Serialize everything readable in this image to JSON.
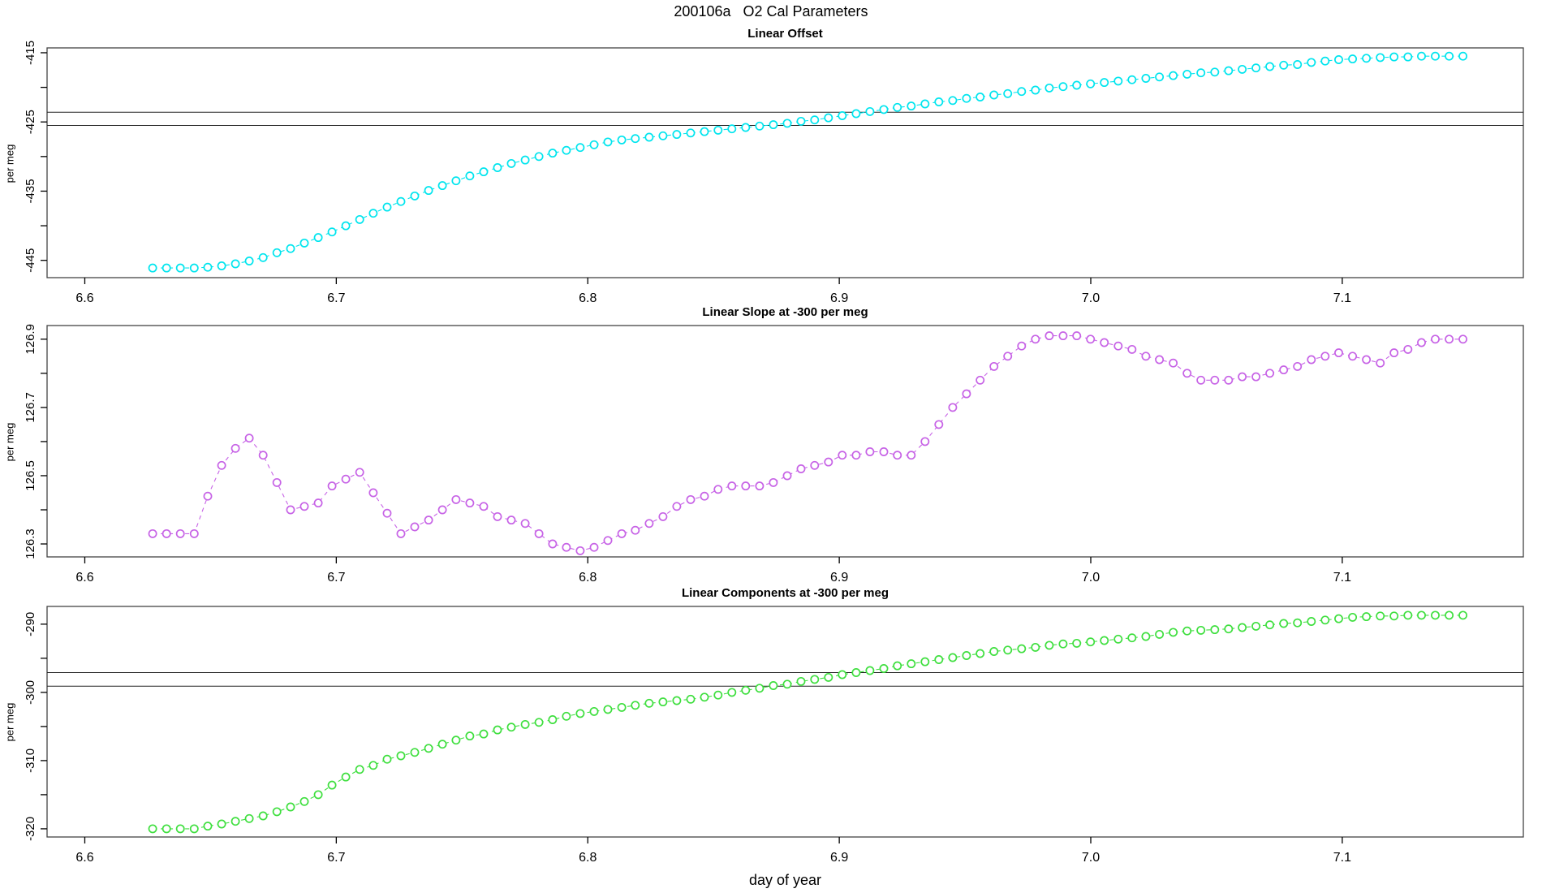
{
  "header": {
    "title": "200106a   O2 Cal Parameters"
  },
  "chart_data": {
    "type": "scatter",
    "layout": "3 stacked panels, shared x-axis",
    "grid": "off",
    "legend": "none",
    "marker": "open-circle",
    "line_style": "dashed",
    "axis_color": "#444444",
    "background": "#ffffff",
    "xlabel": "day of year",
    "xlim": [
      6.585,
      7.172
    ],
    "xticks": [
      {
        "v": 6.6,
        "t": "6.6"
      },
      {
        "v": 6.7,
        "t": "6.7"
      },
      {
        "v": 6.8,
        "t": "6.8"
      },
      {
        "v": 6.9,
        "t": "6.9"
      },
      {
        "v": 7.0,
        "t": "7.0"
      },
      {
        "v": 7.1,
        "t": "7.1"
      }
    ],
    "x": [
      6.627,
      6.6325,
      6.638,
      6.6435,
      6.6489,
      6.6544,
      6.6599,
      6.6654,
      6.6709,
      6.6764,
      6.6818,
      6.6873,
      6.6928,
      6.6983,
      6.7038,
      6.7093,
      6.7147,
      6.7202,
      6.7257,
      6.7312,
      6.7367,
      6.7422,
      6.7476,
      6.7531,
      6.7586,
      6.7641,
      6.7696,
      6.7751,
      6.7806,
      6.786,
      6.7915,
      6.797,
      6.8025,
      6.808,
      6.8135,
      6.8189,
      6.8244,
      6.8299,
      6.8354,
      6.8409,
      6.8464,
      6.8518,
      6.8573,
      6.8628,
      6.8683,
      6.8738,
      6.8793,
      6.8848,
      6.8902,
      6.8957,
      6.9012,
      6.9067,
      6.9122,
      6.9177,
      6.9231,
      6.9286,
      6.9341,
      6.9396,
      6.9451,
      6.9506,
      6.956,
      6.9615,
      6.967,
      6.9725,
      6.978,
      6.9835,
      6.989,
      6.9944,
      6.9999,
      7.0054,
      7.0109,
      7.0164,
      7.0219,
      7.0273,
      7.0328,
      7.0383,
      7.0438,
      7.0493,
      7.0548,
      7.0602,
      7.0657,
      7.0712,
      7.0767,
      7.0822,
      7.0877,
      7.0932,
      7.0986,
      7.1041,
      7.1096,
      7.1151,
      7.1206,
      7.1261,
      7.1315,
      7.137,
      7.1425,
      7.148
    ],
    "panels": [
      {
        "title": "Linear Offset",
        "ylabel": "per meg",
        "ylim": [
          -447.5,
          -414.3
        ],
        "yticks": [
          {
            "v": -415,
            "t": "-415"
          },
          {
            "v": -420,
            "t": ""
          },
          {
            "v": -425,
            "t": "-425"
          },
          {
            "v": -430,
            "t": ""
          },
          {
            "v": -435,
            "t": "-435"
          },
          {
            "v": -440,
            "t": ""
          },
          {
            "v": -445,
            "t": "-445"
          }
        ],
        "ref_lines": [
          -423.6,
          -425.5
        ],
        "color": "#00E5EE",
        "values": [
          -446.1,
          -446.1,
          -446.1,
          -446.1,
          -446.0,
          -445.8,
          -445.5,
          -445.1,
          -444.6,
          -443.9,
          -443.3,
          -442.5,
          -441.7,
          -440.9,
          -440.0,
          -439.1,
          -438.2,
          -437.3,
          -436.5,
          -435.7,
          -434.9,
          -434.2,
          -433.5,
          -432.8,
          -432.2,
          -431.6,
          -431.0,
          -430.5,
          -430.0,
          -429.5,
          -429.1,
          -428.7,
          -428.3,
          -427.9,
          -427.6,
          -427.4,
          -427.2,
          -427.0,
          -426.8,
          -426.6,
          -426.4,
          -426.2,
          -426.0,
          -425.8,
          -425.6,
          -425.4,
          -425.2,
          -424.9,
          -424.7,
          -424.4,
          -424.1,
          -423.8,
          -423.5,
          -423.2,
          -422.9,
          -422.7,
          -422.4,
          -422.1,
          -421.9,
          -421.6,
          -421.4,
          -421.1,
          -420.9,
          -420.6,
          -420.4,
          -420.1,
          -419.9,
          -419.7,
          -419.5,
          -419.3,
          -419.1,
          -418.9,
          -418.7,
          -418.5,
          -418.3,
          -418.1,
          -417.9,
          -417.8,
          -417.6,
          -417.4,
          -417.2,
          -417.0,
          -416.8,
          -416.7,
          -416.4,
          -416.2,
          -416.0,
          -415.9,
          -415.8,
          -415.7,
          -415.6,
          -415.6,
          -415.5,
          -415.5,
          -415.5,
          -415.5
        ]
      },
      {
        "title": "Linear Slope at -300 per meg",
        "ylabel": "per meg",
        "ylim": [
          126.262,
          126.94
        ],
        "yticks": [
          {
            "v": 126.9,
            "t": "126.9"
          },
          {
            "v": 126.8,
            "t": ""
          },
          {
            "v": 126.7,
            "t": "126.7"
          },
          {
            "v": 126.6,
            "t": ""
          },
          {
            "v": 126.5,
            "t": "126.5"
          },
          {
            "v": 126.4,
            "t": ""
          },
          {
            "v": 126.3,
            "t": "126.3"
          }
        ],
        "ref_lines": [],
        "color": "#C763E6",
        "values": [
          126.33,
          126.33,
          126.33,
          126.33,
          126.44,
          126.53,
          126.58,
          126.61,
          126.56,
          126.48,
          126.4,
          126.41,
          126.42,
          126.47,
          126.49,
          126.51,
          126.45,
          126.39,
          126.33,
          126.35,
          126.37,
          126.4,
          126.43,
          126.42,
          126.41,
          126.38,
          126.37,
          126.36,
          126.33,
          126.3,
          126.29,
          126.28,
          126.29,
          126.31,
          126.33,
          126.34,
          126.36,
          126.38,
          126.41,
          126.43,
          126.44,
          126.46,
          126.47,
          126.47,
          126.47,
          126.48,
          126.5,
          126.52,
          126.53,
          126.54,
          126.56,
          126.56,
          126.57,
          126.57,
          126.56,
          126.56,
          126.6,
          126.65,
          126.7,
          126.74,
          126.78,
          126.82,
          126.85,
          126.88,
          126.9,
          126.91,
          126.91,
          126.91,
          126.9,
          126.89,
          126.88,
          126.87,
          126.85,
          126.84,
          126.83,
          126.8,
          126.78,
          126.78,
          126.78,
          126.79,
          126.79,
          126.8,
          126.81,
          126.82,
          126.84,
          126.85,
          126.86,
          126.85,
          126.84,
          126.83,
          126.86,
          126.87,
          126.89,
          126.9,
          126.9,
          126.9
        ]
      },
      {
        "title": "Linear Components at -300 per meg",
        "ylabel": "per meg",
        "ylim": [
          -321.2,
          -287.4
        ],
        "yticks": [
          {
            "v": -290,
            "t": "-290"
          },
          {
            "v": -295,
            "t": ""
          },
          {
            "v": -300,
            "t": "-300"
          },
          {
            "v": -305,
            "t": ""
          },
          {
            "v": -310,
            "t": "-310"
          },
          {
            "v": -315,
            "t": ""
          },
          {
            "v": -320,
            "t": "-320"
          }
        ],
        "ref_lines": [
          -297.1,
          -299.1
        ],
        "color": "#3FDF3F",
        "values": [
          -320.0,
          -320.0,
          -320.0,
          -320.0,
          -319.6,
          -319.3,
          -318.9,
          -318.5,
          -318.1,
          -317.5,
          -316.8,
          -316.0,
          -315.0,
          -313.6,
          -312.4,
          -311.3,
          -310.7,
          -309.8,
          -309.3,
          -308.8,
          -308.2,
          -307.6,
          -307.0,
          -306.4,
          -306.1,
          -305.5,
          -305.1,
          -304.7,
          -304.4,
          -304.0,
          -303.5,
          -303.1,
          -302.8,
          -302.5,
          -302.2,
          -301.9,
          -301.6,
          -301.4,
          -301.2,
          -301.0,
          -300.7,
          -300.4,
          -300.0,
          -299.7,
          -299.4,
          -299.0,
          -298.8,
          -298.4,
          -298.1,
          -297.8,
          -297.4,
          -297.1,
          -296.8,
          -296.5,
          -296.1,
          -295.8,
          -295.5,
          -295.2,
          -294.9,
          -294.6,
          -294.3,
          -294.0,
          -293.8,
          -293.6,
          -293.4,
          -293.1,
          -292.9,
          -292.8,
          -292.6,
          -292.4,
          -292.2,
          -292.0,
          -291.8,
          -291.5,
          -291.2,
          -291.0,
          -290.9,
          -290.8,
          -290.7,
          -290.5,
          -290.3,
          -290.1,
          -289.9,
          -289.8,
          -289.6,
          -289.4,
          -289.2,
          -289.0,
          -288.9,
          -288.8,
          -288.8,
          -288.7,
          -288.7,
          -288.7,
          -288.7,
          -288.7
        ]
      }
    ]
  }
}
